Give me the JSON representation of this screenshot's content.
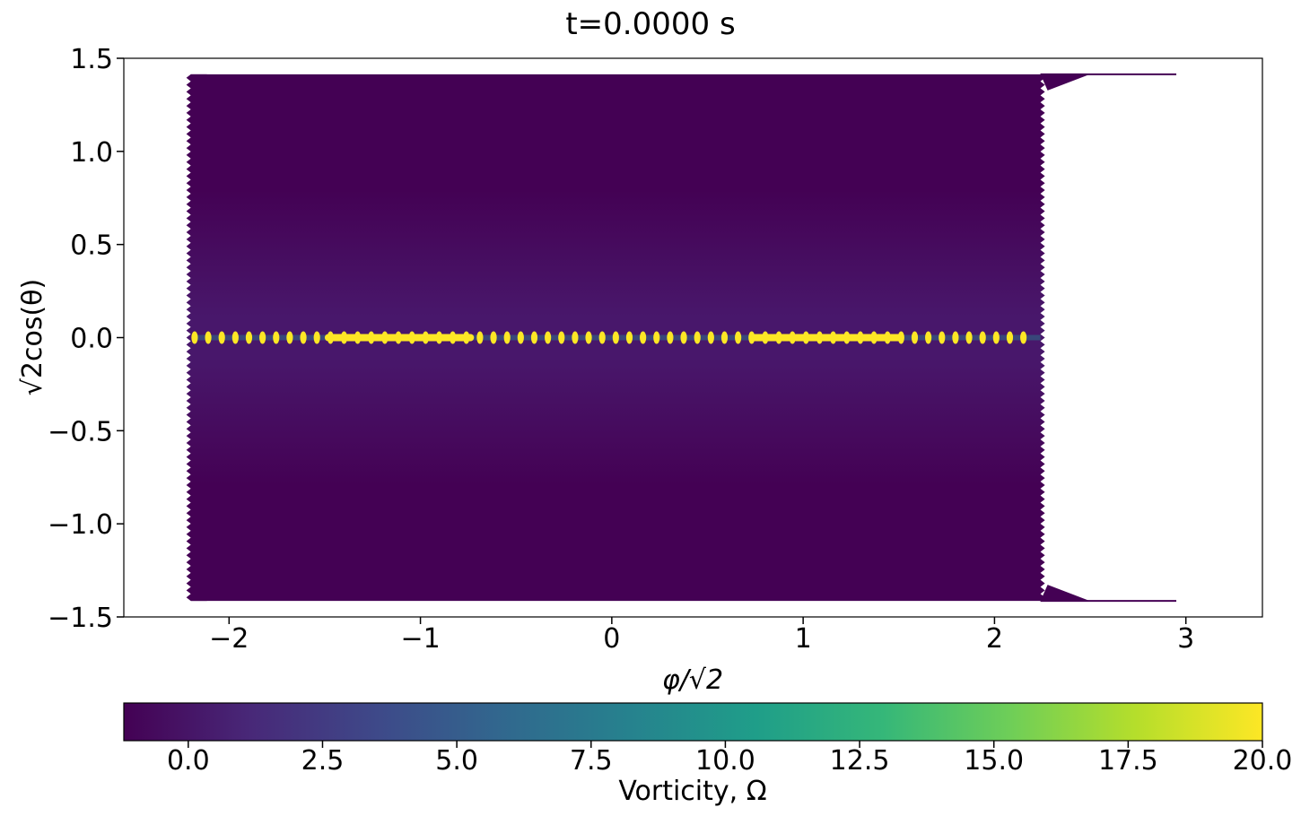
{
  "figure": {
    "title": "t=0.0000 s"
  },
  "chart_data": {
    "type": "heatmap",
    "title": "t=0.0000 s",
    "xlabel": "φ/√2",
    "ylabel": "√2cos(θ)",
    "xlim": [
      -2.55,
      3.4
    ],
    "ylim": [
      -1.5,
      1.5
    ],
    "x_ticks": [
      -2,
      -1,
      0,
      1,
      2,
      3
    ],
    "x_tick_labels": [
      "−2",
      "−1",
      "0",
      "1",
      "2",
      "3"
    ],
    "y_ticks": [
      1.5,
      1.0,
      0.5,
      0.0,
      -0.5,
      -1.0,
      -1.5
    ],
    "y_tick_labels": [
      "1.5",
      "1.0",
      "0.5",
      "0.0",
      "−0.5",
      "−1.0",
      "−1.5"
    ],
    "field": {
      "x_range": [
        -2.2,
        2.24
      ],
      "y_range": [
        -1.414,
        1.414
      ],
      "background_value": -1.2,
      "band_center_value": 1.8,
      "equator_value": 20.0,
      "wispy_extent_x": 2.95
    },
    "colorbar": {
      "label": "Vorticity, Ω",
      "range": [
        -1.2,
        20.0
      ],
      "ticks": [
        0.0,
        2.5,
        5.0,
        7.5,
        10.0,
        12.5,
        15.0,
        17.5,
        20.0
      ],
      "tick_labels": [
        "0.0",
        "2.5",
        "5.0",
        "7.5",
        "10.0",
        "12.5",
        "15.0",
        "17.5",
        "20.0"
      ],
      "colormap": "viridis",
      "colors": [
        "#440154",
        "#482878",
        "#3e4989",
        "#31688e",
        "#26828e",
        "#1f9e89",
        "#35b779",
        "#6ece58",
        "#b5de2b",
        "#fde725"
      ]
    },
    "grid": false,
    "legend": "none"
  }
}
